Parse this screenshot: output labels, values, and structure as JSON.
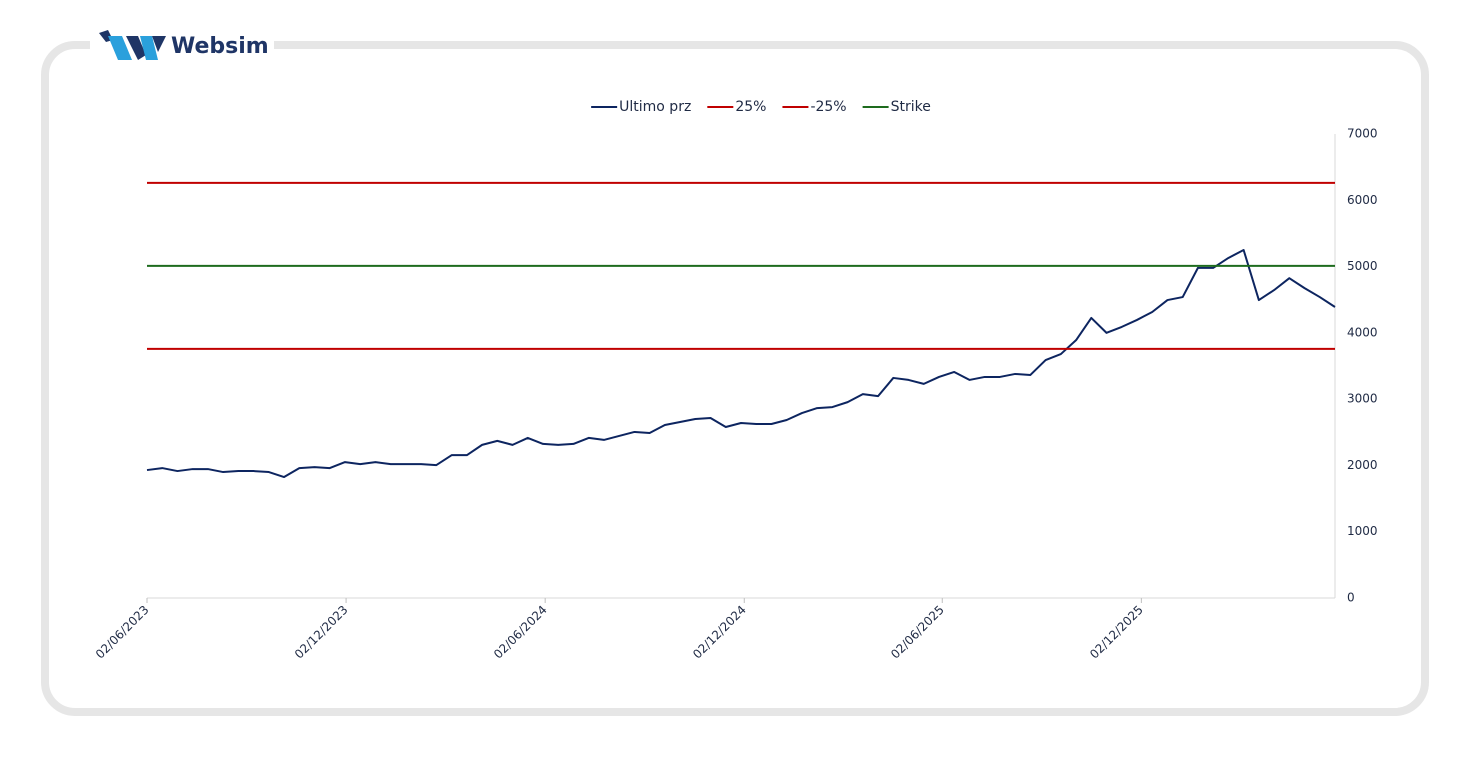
{
  "logo": "Websim",
  "chart_data": {
    "type": "line",
    "x": [
      "02/06/2023",
      "16/06/2023",
      "30/06/2023",
      "14/07/2023",
      "28/07/2023",
      "11/08/2023",
      "25/08/2023",
      "08/09/2023",
      "22/09/2023",
      "06/10/2023",
      "20/10/2023",
      "03/11/2023",
      "17/11/2023",
      "01/12/2023",
      "15/12/2023",
      "29/12/2023",
      "12/01/2024",
      "26/01/2024",
      "09/02/2024",
      "23/02/2024",
      "08/03/2024",
      "22/03/2024",
      "05/04/2024",
      "19/04/2024",
      "03/05/2024",
      "17/05/2024",
      "31/05/2024",
      "14/06/2024",
      "28/06/2024",
      "12/07/2024",
      "26/07/2024",
      "09/08/2024",
      "23/08/2024",
      "06/09/2024",
      "20/09/2024",
      "04/10/2024",
      "18/10/2024",
      "01/11/2024",
      "15/11/2024",
      "29/11/2024",
      "13/12/2024",
      "27/12/2024",
      "10/01/2025",
      "24/01/2025",
      "07/02/2025",
      "21/02/2025",
      "07/03/2025",
      "21/03/2025",
      "04/04/2025",
      "18/04/2025",
      "02/05/2025",
      "16/05/2025",
      "30/05/2025",
      "13/06/2025",
      "27/06/2025",
      "11/07/2025",
      "25/07/2025",
      "08/08/2025",
      "22/08/2025",
      "05/09/2025",
      "19/09/2025",
      "03/10/2025",
      "17/10/2025",
      "31/10/2025",
      "14/11/2025",
      "28/11/2025",
      "12/12/2025",
      "26/12/2025",
      "09/01/2026",
      "23/01/2026",
      "06/02/2026",
      "20/02/2026",
      "06/03/2026",
      "20/03/2026",
      "03/04/2026",
      "17/04/2026",
      "01/05/2026",
      "15/05/2026",
      "29/05/2026"
    ],
    "series": [
      {
        "name": "Ultimo prz",
        "color": "#0d2560",
        "values": [
          1930,
          1960,
          1915,
          1945,
          1945,
          1900,
          1915,
          1915,
          1900,
          1825,
          1960,
          1975,
          1960,
          2050,
          2020,
          2050,
          2020,
          2020,
          2020,
          2005,
          2155,
          2155,
          2310,
          2370,
          2310,
          2415,
          2325,
          2310,
          2325,
          2415,
          2385,
          2445,
          2505,
          2490,
          2610,
          2655,
          2700,
          2715,
          2580,
          2640,
          2625,
          2625,
          2685,
          2790,
          2865,
          2880,
          2955,
          3075,
          3045,
          3320,
          3290,
          3230,
          3335,
          3410,
          3290,
          3335,
          3335,
          3380,
          3365,
          3590,
          3680,
          3890,
          4225,
          4000,
          4090,
          4195,
          4315,
          4495,
          4540,
          4980,
          4980,
          5130,
          5250,
          4495,
          4645,
          4825,
          4675,
          4540,
          4390
        ]
      },
      {
        "name": "25%",
        "color": "#c00000",
        "x": [
          "02/06/2023",
          "29/05/2026"
        ],
        "values": [
          6262.5,
          6262.5
        ]
      },
      {
        "name": "-25%",
        "color": "#c00000",
        "x": [
          "02/06/2023",
          "29/05/2026"
        ],
        "values": [
          3757.5,
          3757.5
        ]
      },
      {
        "name": "Strike",
        "color": "#1e6b1e",
        "x": [
          "02/06/2023",
          "29/05/2026"
        ],
        "values": [
          5010,
          5010
        ]
      }
    ],
    "xlim": [
      "02/06/2023",
      "29/05/2026"
    ],
    "xticks": [
      "02/06/2023",
      "02/12/2023",
      "02/06/2024",
      "02/12/2024",
      "02/06/2025",
      "02/12/2025"
    ],
    "ylim": [
      0,
      7000
    ],
    "yticks": [
      0,
      1000,
      2000,
      3000,
      4000,
      5000,
      6000,
      7000
    ],
    "grid": false,
    "legend": "top"
  }
}
